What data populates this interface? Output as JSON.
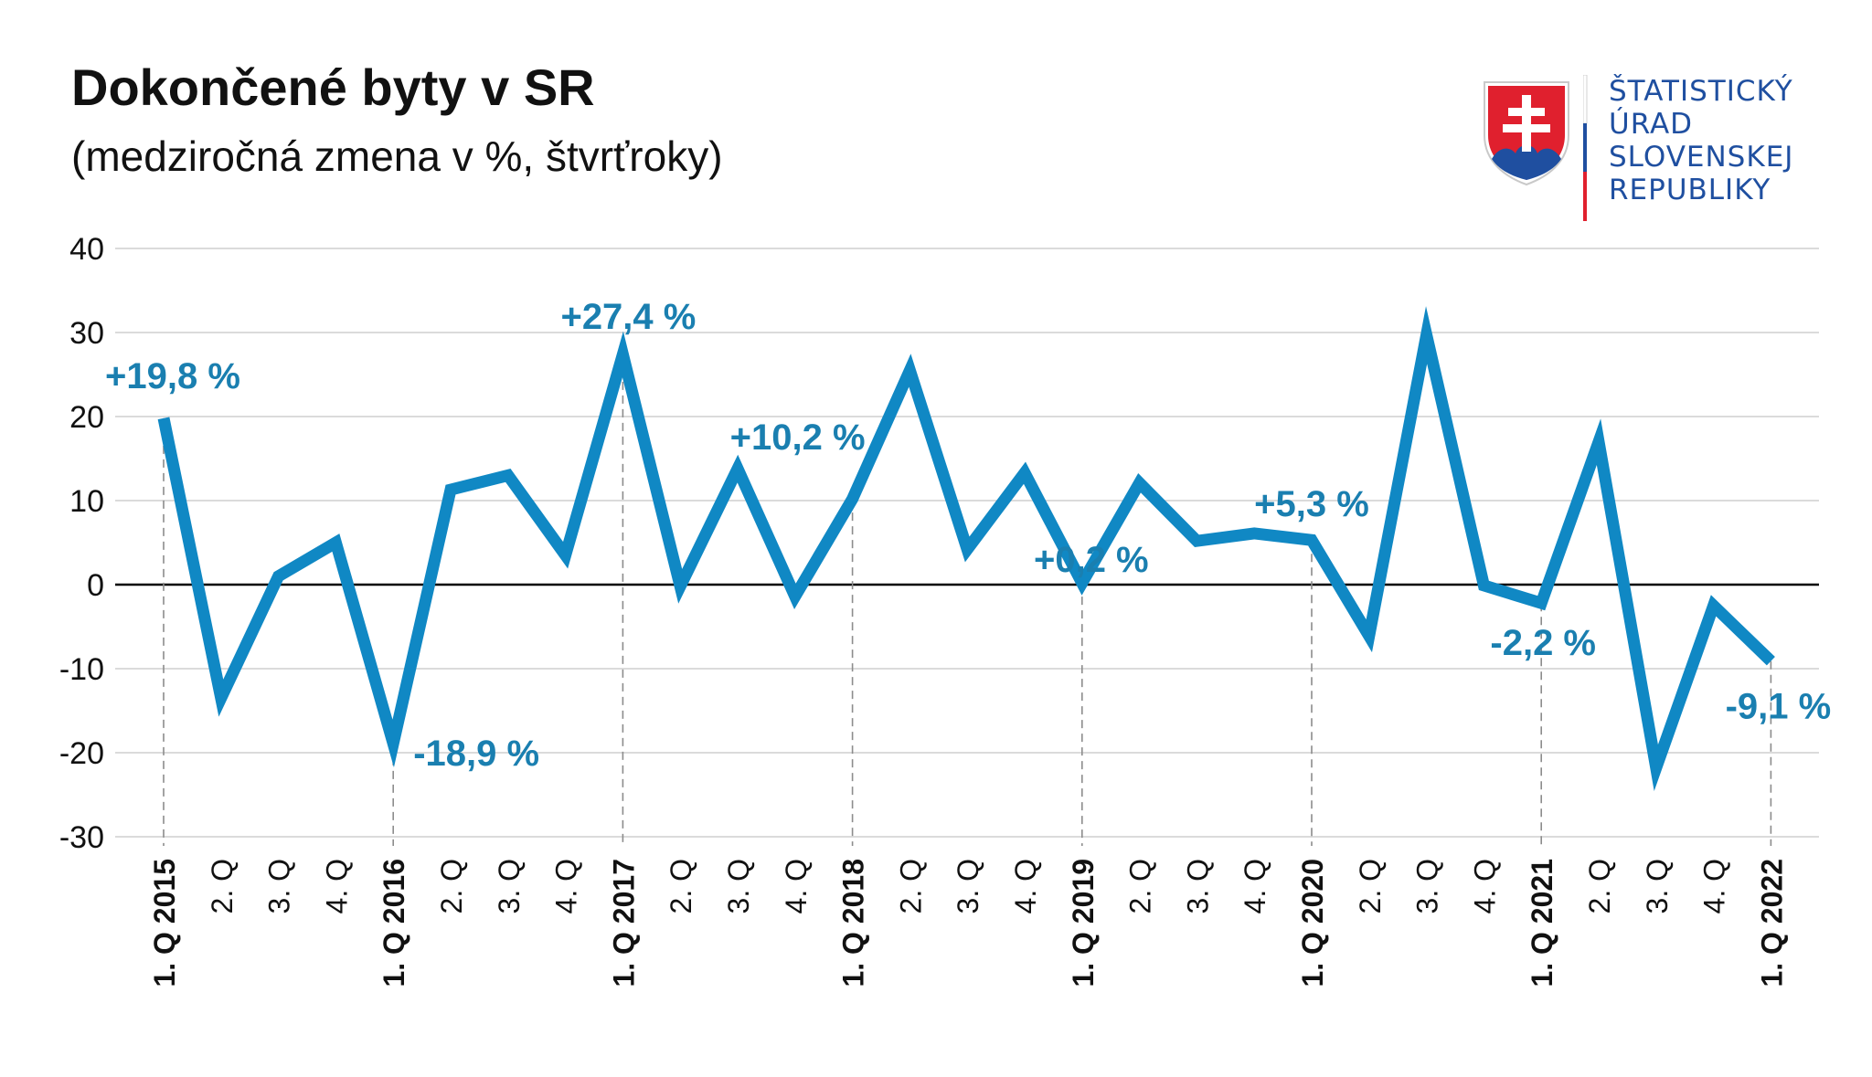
{
  "header": {
    "title": "Dokončené byty v SR",
    "subtitle": "(medziročná zmena v %, štvrťroky)"
  },
  "logo": {
    "lines": [
      "ŠTATISTICKÝ",
      "ÚRAD",
      "SLOVENSKEJ",
      "REPUBLIKY"
    ],
    "text_color": "#1f4fa0",
    "emblem": "slovak-coat-of-arms-icon"
  },
  "colors": {
    "line": "#1088c4",
    "annotation": "#1a7fb0",
    "grid": "#cfcfcf",
    "zero_line": "#000000",
    "guide": "#8c8c8c"
  },
  "chart_data": {
    "type": "line",
    "title": "",
    "xlabel": "",
    "ylabel": "",
    "ylim": [
      -30,
      40
    ],
    "yticks": [
      40,
      30,
      20,
      10,
      0,
      -10,
      -20,
      -30
    ],
    "ytick_labels": [
      "40",
      "30",
      "20",
      "10",
      "0",
      "-10",
      "-20",
      "-30"
    ],
    "grid": true,
    "legend": "none",
    "categories": [
      "1. Q 2015",
      "2. Q",
      "3. Q",
      "4. Q",
      "1. Q 2016",
      "2. Q",
      "3. Q",
      "4. Q",
      "1. Q 2017",
      "2. Q",
      "3. Q",
      "4. Q",
      "1. Q 2018",
      "2. Q",
      "3. Q",
      "4. Q",
      "1. Q 2019",
      "2. Q",
      "3. Q",
      "4. Q",
      "1. Q 2020",
      "2. Q",
      "3. Q",
      "4. Q",
      "1. Q 2021",
      "2. Q",
      "3. Q",
      "4. Q",
      "1. Q 2022"
    ],
    "bold_categories": [
      0,
      4,
      8,
      12,
      16,
      20,
      24,
      28
    ],
    "series": [
      {
        "values": [
          19.8,
          -13.5,
          1.0,
          5.0,
          -18.9,
          11.3,
          13.0,
          3.5,
          27.4,
          -0.2,
          13.8,
          -1.4,
          10.2,
          25.5,
          4.2,
          13.3,
          0.2,
          12.1,
          5.2,
          6.1,
          5.3,
          -6.1,
          29.7,
          -0.1,
          -2.2,
          17.0,
          -21.8,
          -2.5,
          -9.1
        ]
      }
    ],
    "annotations": [
      {
        "index": 0,
        "text": "+19,8 %"
      },
      {
        "index": 4,
        "text": "-18,9 %"
      },
      {
        "index": 8,
        "text": "+27,4 %"
      },
      {
        "index": 12,
        "text": "+10,2 %"
      },
      {
        "index": 16,
        "text": "+0,2 %"
      },
      {
        "index": 20,
        "text": "+5,3 %"
      },
      {
        "index": 24,
        "text": "-2,2 %"
      },
      {
        "index": 28,
        "text": "-9,1 %"
      }
    ]
  }
}
